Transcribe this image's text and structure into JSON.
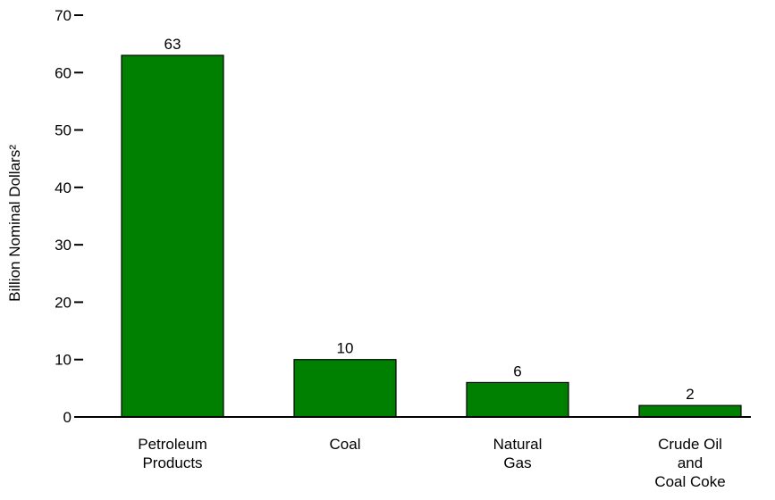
{
  "chart_data": {
    "type": "bar",
    "title": "",
    "xlabel": "",
    "ylabel": "Billion Nominal Dollars²",
    "ylim": [
      0,
      70
    ],
    "yticks": [
      0,
      10,
      20,
      30,
      40,
      50,
      60,
      70
    ],
    "categories": [
      [
        "Petroleum",
        "Products"
      ],
      [
        "Coal"
      ],
      [
        "Natural",
        "Gas"
      ],
      [
        "Crude Oil",
        "and",
        "Coal Coke"
      ]
    ],
    "values": [
      63,
      10,
      6,
      2
    ],
    "data_labels": [
      "63",
      "10",
      "6",
      "2"
    ],
    "grid": false,
    "legend": "none",
    "bar_color": "#008000",
    "bar_edge_color": "#000000"
  }
}
